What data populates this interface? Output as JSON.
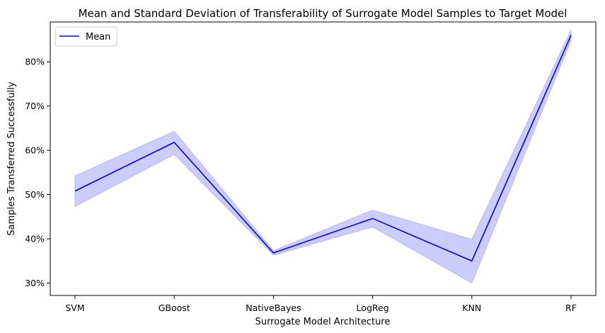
{
  "chart_data": {
    "type": "line",
    "title": "Mean and Standard Deviation of Transferability of Surrogate Model Samples to Target Model",
    "xlabel": "Surrogate Model Architecture",
    "ylabel": "Samples Transferred Successfully",
    "categories": [
      "SVM",
      "GBoost",
      "NativeBayes",
      "LogReg",
      "KNN",
      "RF"
    ],
    "series": [
      {
        "name": "Mean",
        "values": [
          0.508,
          0.618,
          0.368,
          0.446,
          0.35,
          0.86
        ],
        "lower": [
          0.473,
          0.591,
          0.363,
          0.427,
          0.3,
          0.848
        ],
        "upper": [
          0.542,
          0.643,
          0.373,
          0.465,
          0.399,
          0.872
        ],
        "color": "#0000ff",
        "band_color": "#0000ff"
      }
    ],
    "ylim": [
      0.272,
      0.89
    ],
    "yticks": [
      0.3,
      0.4,
      0.5,
      0.6,
      0.7,
      0.8
    ],
    "ytick_labels": [
      "30%",
      "40%",
      "50%",
      "60%",
      "70%",
      "80%"
    ],
    "legend_position": "upper-left",
    "grid": false
  }
}
